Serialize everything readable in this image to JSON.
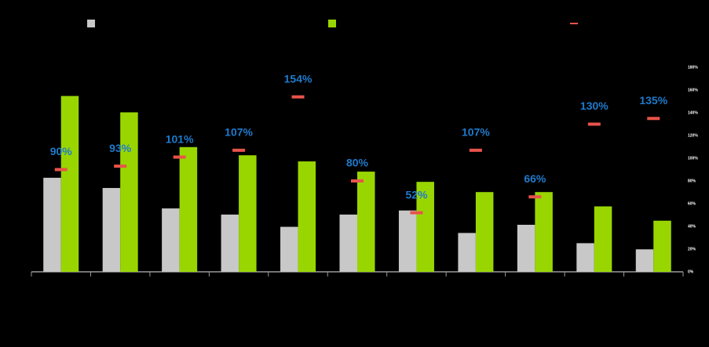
{
  "chart_data": {
    "type": "bar",
    "categories": [
      null,
      null,
      null,
      null,
      null,
      null,
      null,
      null,
      null,
      null,
      null
    ],
    "ylim": [
      0,
      100
    ],
    "y2lim": [
      0,
      180
    ],
    "y2ticks": [
      {
        "value": 0,
        "label": "0%"
      },
      {
        "value": 20,
        "label": "20%"
      },
      {
        "value": 40,
        "label": "40%"
      },
      {
        "value": 60,
        "label": "60%"
      },
      {
        "value": 80,
        "label": "80%"
      },
      {
        "value": 100,
        "label": "100%"
      },
      {
        "value": 120,
        "label": "120%"
      },
      {
        "value": 140,
        "label": "140%"
      },
      {
        "value": 160,
        "label": "160%"
      },
      {
        "value": 180,
        "label": "180%"
      }
    ],
    "series": [
      {
        "color": "#c8c8c8",
        "mark": "bar",
        "values": [
          46,
          41,
          31,
          28,
          22,
          28,
          30,
          19,
          23,
          14,
          11
        ]
      },
      {
        "color": "#99d600",
        "mark": "bar",
        "values": [
          86,
          78,
          61,
          57,
          54,
          49,
          44,
          39,
          39,
          32,
          25
        ]
      },
      {
        "color": "#e8534a",
        "mark": "dash",
        "axis": "y2",
        "label_color": "#1f7acc",
        "values": [
          90,
          93,
          101,
          107,
          154,
          80,
          52,
          107,
          66,
          130,
          135
        ],
        "value_labels": [
          "90%",
          "93%",
          "101%",
          "107%",
          "154%",
          "80%",
          "52%",
          "107%",
          "66%",
          "130%",
          "135%"
        ]
      }
    ]
  }
}
